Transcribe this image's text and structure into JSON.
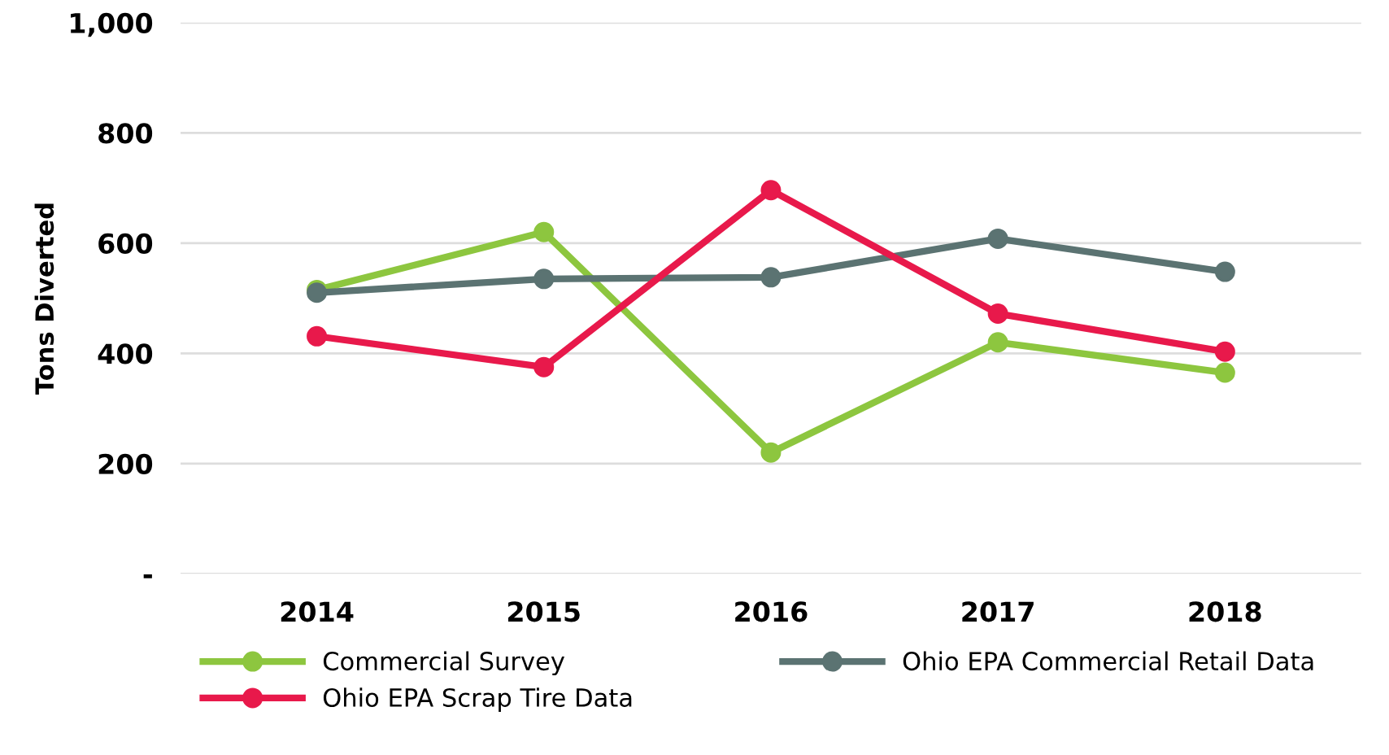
{
  "chart_data": {
    "type": "line",
    "ylabel": "Tons Diverted",
    "categories": [
      "2014",
      "2015",
      "2016",
      "2017",
      "2018"
    ],
    "series": [
      {
        "name": "Commercial Survey",
        "color": "#8dc63f",
        "values": [
          515,
          620,
          220,
          420,
          365
        ]
      },
      {
        "name": "Ohio EPA Commercial Retail Data",
        "color": "#5b7372",
        "values": [
          510,
          535,
          538,
          608,
          548
        ]
      },
      {
        "name": "Ohio EPA Scrap Tire Data",
        "color": "#e8194b",
        "values": [
          431,
          375,
          696,
          472,
          403
        ]
      }
    ],
    "ylim": [
      0,
      1000
    ],
    "yticks": [
      {
        "value": 0,
        "label": "-"
      },
      200,
      400,
      600,
      800,
      {
        "value": 1000,
        "label": "1,000"
      }
    ],
    "grid": "y",
    "legend": "bottom",
    "marker": "circle",
    "line_style": "solid"
  }
}
